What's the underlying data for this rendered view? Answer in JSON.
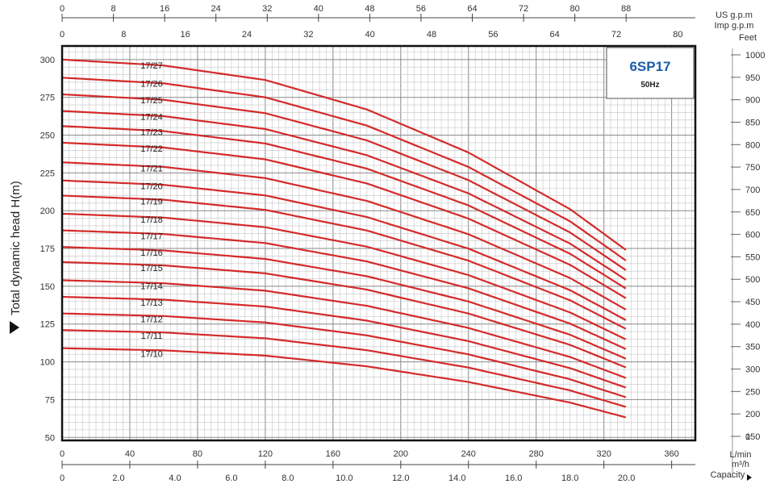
{
  "chart_data": {
    "type": "line",
    "title": "6SP17",
    "subtitle": "50Hz",
    "ylabel": "Total dynamic head H(m)",
    "ylim": [
      48,
      309
    ],
    "grid": true,
    "bottom_axes": {
      "lpm": {
        "label": "L/min",
        "ticks": [
          "0",
          "40",
          "80",
          "120",
          "160",
          "200",
          "240",
          "280",
          "320",
          "360"
        ]
      },
      "m3h": {
        "label": "m³/h",
        "ticks": [
          "0",
          "2.0",
          "4.0",
          "6.0",
          "8.0",
          "10.0",
          "12.0",
          "14.0",
          "16.0",
          "18.0",
          "20.0"
        ]
      },
      "capacity_label": "Capacity"
    },
    "top_axes": {
      "us_gpm": {
        "label": "US g.p.m",
        "ticks": [
          "0",
          "8",
          "16",
          "24",
          "32",
          "40",
          "48",
          "56",
          "64",
          "72",
          "80",
          "88"
        ]
      },
      "imp_gpm": {
        "label": "Imp g.p.m",
        "ticks": [
          "0",
          "8",
          "16",
          "24",
          "32",
          "40",
          "48",
          "56",
          "64",
          "72",
          "80"
        ]
      }
    },
    "y_ticks": [
      "50",
      "75",
      "100",
      "125",
      "150",
      "175",
      "200",
      "225",
      "250",
      "275",
      "300"
    ],
    "feet_axis": {
      "label": "Feet",
      "ticks": [
        "0",
        "150",
        "200",
        "250",
        "300",
        "350",
        "400",
        "450",
        "500",
        "550",
        "600",
        "650",
        "700",
        "750",
        "800",
        "850",
        "900",
        "950",
        "1000"
      ]
    },
    "x_units": "L/min",
    "x_max": 333,
    "series_shape": {
      "x": [
        0,
        60,
        120,
        180,
        240,
        300,
        333
      ],
      "head_ratio": [
        1.0,
        0.987,
        0.955,
        0.89,
        0.795,
        0.67,
        0.58
      ]
    },
    "series": [
      {
        "name": "17/10",
        "shutoff_head": 109
      },
      {
        "name": "17/11",
        "shutoff_head": 121
      },
      {
        "name": "17/12",
        "shutoff_head": 132
      },
      {
        "name": "17/13",
        "shutoff_head": 143
      },
      {
        "name": "17/14",
        "shutoff_head": 154
      },
      {
        "name": "17/15",
        "shutoff_head": 166
      },
      {
        "name": "17/16",
        "shutoff_head": 176
      },
      {
        "name": "17/17",
        "shutoff_head": 187
      },
      {
        "name": "17/18",
        "shutoff_head": 198
      },
      {
        "name": "17/19",
        "shutoff_head": 210
      },
      {
        "name": "17/20",
        "shutoff_head": 220
      },
      {
        "name": "17/21",
        "shutoff_head": 232
      },
      {
        "name": "17/22",
        "shutoff_head": 245
      },
      {
        "name": "17/23",
        "shutoff_head": 256
      },
      {
        "name": "17/24",
        "shutoff_head": 266
      },
      {
        "name": "17/25",
        "shutoff_head": 277
      },
      {
        "name": "17/26",
        "shutoff_head": 288
      },
      {
        "name": "17/27",
        "shutoff_head": 300
      }
    ],
    "colors": {
      "curve": "#d42a2a",
      "title": "#1a5fa8",
      "grid_major": "#8a8a8a",
      "grid_minor": "#c4c4c4",
      "frame": "#111111"
    }
  }
}
